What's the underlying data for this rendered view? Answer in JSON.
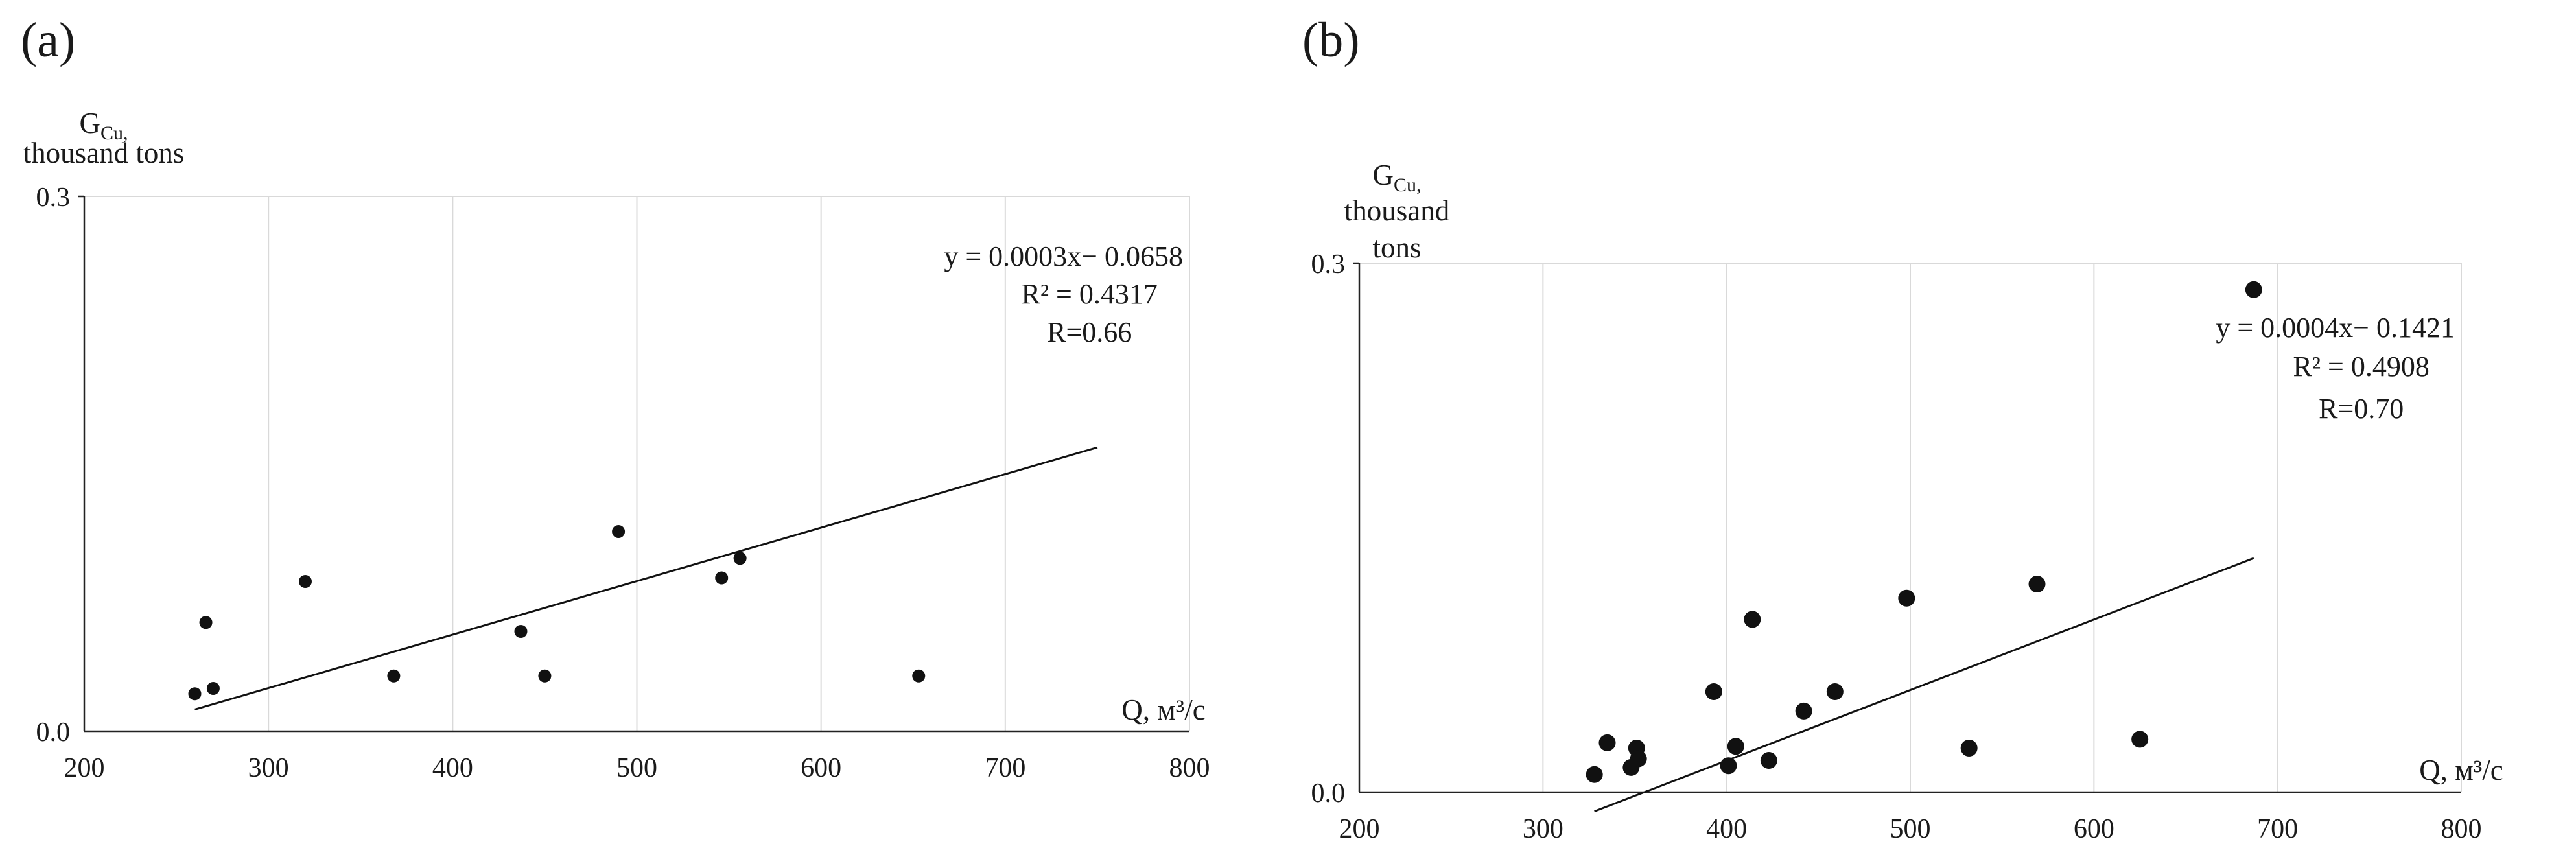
{
  "chart_data": [
    {
      "type": "scatter",
      "panel_label": "(a)",
      "xlabel": "Q, м³/с",
      "ylabel_lines": [
        "G",
        "Cu,",
        "thousand tons"
      ],
      "xlim": [
        200,
        800
      ],
      "ylim": [
        0.0,
        0.3
      ],
      "x_ticks": [
        "200",
        "300",
        "400",
        "500",
        "600",
        "700",
        "800"
      ],
      "y_ticks": [
        "0.0",
        "0.3"
      ],
      "grid": "vertical",
      "trendline": {
        "slope": 0.0003,
        "intercept": -0.0658,
        "x_range": [
          260,
          750
        ]
      },
      "annotations": [
        "y = 0.0003x− 0.0658",
        "R² = 0.4317",
        "R=0.66"
      ],
      "points": [
        {
          "x": 260,
          "y": 0.021
        },
        {
          "x": 266,
          "y": 0.061
        },
        {
          "x": 270,
          "y": 0.024
        },
        {
          "x": 320,
          "y": 0.084
        },
        {
          "x": 368,
          "y": 0.031
        },
        {
          "x": 437,
          "y": 0.056
        },
        {
          "x": 450,
          "y": 0.031
        },
        {
          "x": 490,
          "y": 0.112
        },
        {
          "x": 546,
          "y": 0.086
        },
        {
          "x": 556,
          "y": 0.097
        },
        {
          "x": 653,
          "y": 0.031
        }
      ]
    },
    {
      "type": "scatter",
      "panel_label": "(b)",
      "xlabel": "Q, м³/с",
      "ylabel_lines": [
        "G",
        "Cu,",
        "thousand",
        "tons"
      ],
      "xlim": [
        200,
        800
      ],
      "ylim": [
        0.0,
        0.3
      ],
      "x_ticks": [
        "200",
        "300",
        "400",
        "500",
        "600",
        "700",
        "800"
      ],
      "y_ticks": [
        "0.0",
        "0.3"
      ],
      "grid": "vertical",
      "trendline": {
        "slope": 0.0004,
        "intercept": -0.1421,
        "x_range": [
          328,
          687
        ]
      },
      "annotations": [
        "y = 0.0004x− 0.1421",
        "R² = 0.4908",
        "R=0.70"
      ],
      "points": [
        {
          "x": 328,
          "y": 0.01
        },
        {
          "x": 335,
          "y": 0.028
        },
        {
          "x": 348,
          "y": 0.014
        },
        {
          "x": 351,
          "y": 0.025
        },
        {
          "x": 352,
          "y": 0.019
        },
        {
          "x": 393,
          "y": 0.057
        },
        {
          "x": 401,
          "y": 0.015
        },
        {
          "x": 405,
          "y": 0.026
        },
        {
          "x": 414,
          "y": 0.098
        },
        {
          "x": 423,
          "y": 0.018
        },
        {
          "x": 442,
          "y": 0.046
        },
        {
          "x": 459,
          "y": 0.057
        },
        {
          "x": 498,
          "y": 0.11
        },
        {
          "x": 532,
          "y": 0.025
        },
        {
          "x": 569,
          "y": 0.118
        },
        {
          "x": 625,
          "y": 0.03
        },
        {
          "x": 687,
          "y": 0.285
        }
      ]
    }
  ]
}
